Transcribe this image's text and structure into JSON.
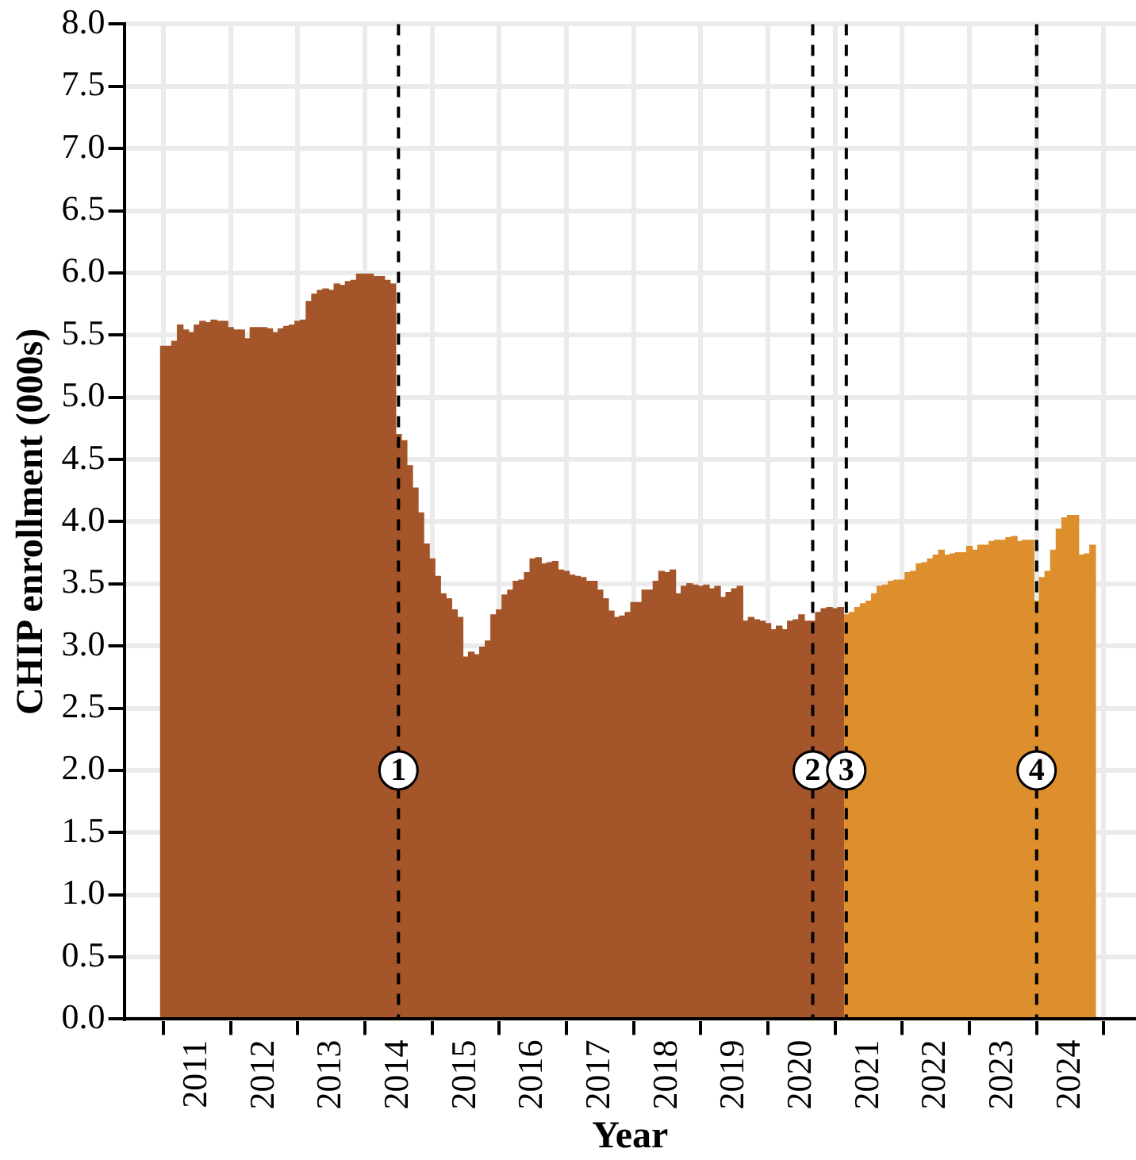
{
  "chart_data": {
    "type": "bar",
    "xlabel": "Year",
    "ylabel": "CHIP enrollment (000s)",
    "series": [
      {
        "color": "#a5552a",
        "x": [
          "2010-07",
          "2010-08",
          "2010-09",
          "2010-10",
          "2010-11",
          "2010-12",
          "2011-01",
          "2011-02",
          "2011-03",
          "2011-04",
          "2011-05",
          "2011-06",
          "2011-07",
          "2011-08",
          "2011-09",
          "2011-10",
          "2011-11",
          "2011-12",
          "2012-01",
          "2012-02",
          "2012-03",
          "2012-04",
          "2012-05",
          "2012-06",
          "2012-07",
          "2012-08",
          "2012-09",
          "2012-10",
          "2012-11",
          "2012-12",
          "2013-01",
          "2013-02",
          "2013-03",
          "2013-04",
          "2013-05",
          "2013-06",
          "2013-07",
          "2013-08",
          "2013-09",
          "2013-10",
          "2013-11",
          "2013-12",
          "2014-01",
          "2014-02",
          "2014-03",
          "2014-04",
          "2014-05",
          "2014-06",
          "2014-07",
          "2014-08",
          "2014-09",
          "2014-10",
          "2014-11",
          "2014-12",
          "2015-01",
          "2015-02",
          "2015-03",
          "2015-04",
          "2015-05",
          "2015-06",
          "2015-07",
          "2015-08",
          "2015-09",
          "2015-10",
          "2015-11",
          "2015-12",
          "2016-01",
          "2016-02",
          "2016-03",
          "2016-04",
          "2016-05",
          "2016-06",
          "2016-07",
          "2016-08",
          "2016-09",
          "2016-10",
          "2016-11",
          "2016-12",
          "2017-01",
          "2017-02",
          "2017-03",
          "2017-04",
          "2017-05",
          "2017-06",
          "2017-07",
          "2017-08",
          "2017-09",
          "2017-10",
          "2017-11",
          "2017-12",
          "2018-01",
          "2018-02",
          "2018-03",
          "2018-04",
          "2018-05",
          "2018-06",
          "2018-07",
          "2018-08",
          "2018-09",
          "2018-10",
          "2018-11",
          "2018-12",
          "2019-01",
          "2019-02",
          "2019-03",
          "2019-04",
          "2019-05",
          "2019-06",
          "2019-07",
          "2019-08",
          "2019-09",
          "2019-10",
          "2019-11",
          "2019-12",
          "2020-01",
          "2020-02",
          "2020-03",
          "2020-04",
          "2020-05",
          "2020-06",
          "2020-07",
          "2020-08"
        ],
        "values": [
          5.41,
          5.41,
          5.45,
          5.58,
          5.54,
          5.52,
          5.58,
          5.61,
          5.6,
          5.62,
          5.61,
          5.61,
          5.56,
          5.54,
          5.54,
          5.47,
          5.56,
          5.56,
          5.56,
          5.55,
          5.52,
          5.55,
          5.57,
          5.58,
          5.61,
          5.62,
          5.77,
          5.83,
          5.86,
          5.87,
          5.86,
          5.91,
          5.9,
          5.93,
          5.94,
          5.99,
          5.99,
          5.99,
          5.97,
          5.97,
          5.94,
          5.91,
          4.7,
          4.65,
          4.45,
          4.27,
          4.07,
          3.82,
          3.7,
          3.56,
          3.42,
          3.38,
          3.29,
          3.23,
          2.91,
          2.95,
          2.93,
          2.99,
          3.04,
          3.25,
          3.29,
          3.41,
          3.45,
          3.52,
          3.53,
          3.59,
          3.7,
          3.71,
          3.66,
          3.67,
          3.68,
          3.61,
          3.6,
          3.57,
          3.56,
          3.55,
          3.52,
          3.52,
          3.45,
          3.38,
          3.28,
          3.23,
          3.24,
          3.27,
          3.35,
          3.35,
          3.45,
          3.45,
          3.52,
          3.6,
          3.59,
          3.61,
          3.42,
          3.48,
          3.5,
          3.49,
          3.48,
          3.49,
          3.46,
          3.48,
          3.39,
          3.43,
          3.46,
          3.48,
          3.2,
          3.23,
          3.21,
          3.2,
          3.18,
          3.13,
          3.16,
          3.13,
          3.2,
          3.21,
          3.25,
          3.2,
          3.2,
          3.27,
          3.3,
          3.31,
          3.3,
          3.31
        ]
      },
      {
        "color": "#dc8f2c",
        "x": [
          "2020-09",
          "2020-10",
          "2020-11",
          "2020-12",
          "2021-01",
          "2021-02",
          "2021-03",
          "2021-04",
          "2021-05",
          "2021-06",
          "2021-07",
          "2021-08",
          "2021-09",
          "2021-10",
          "2021-11",
          "2021-12",
          "2022-01",
          "2022-02",
          "2022-03",
          "2022-04",
          "2022-05",
          "2022-06",
          "2022-07",
          "2022-08",
          "2022-09",
          "2022-10",
          "2022-11",
          "2022-12",
          "2023-01",
          "2023-02",
          "2023-03",
          "2023-04",
          "2023-05",
          "2023-06",
          "2023-07",
          "2023-08",
          "2023-09",
          "2023-10",
          "2023-11",
          "2023-12",
          "2024-01",
          "2024-02",
          "2024-03",
          "2024-04",
          "2024-05"
        ],
        "values": [
          3.25,
          3.27,
          3.31,
          3.34,
          3.36,
          3.42,
          3.48,
          3.49,
          3.52,
          3.53,
          3.53,
          3.59,
          3.6,
          3.66,
          3.67,
          3.7,
          3.73,
          3.77,
          3.73,
          3.74,
          3.75,
          3.75,
          3.8,
          3.77,
          3.81,
          3.81,
          3.84,
          3.85,
          3.85,
          3.87,
          3.88,
          3.84,
          3.85,
          3.85,
          3.36,
          3.55,
          3.6,
          3.77,
          3.94,
          4.03,
          4.05,
          4.05,
          3.73,
          3.74,
          3.81
        ]
      }
    ],
    "xlim": [
      "2010-06-15",
      "2024-06-10"
    ],
    "xticks": [
      "2011",
      "2012",
      "2013",
      "2014",
      "2015",
      "2016",
      "2017",
      "2018",
      "2019",
      "2020",
      "2021",
      "2022",
      "2023",
      "2024"
    ],
    "ylim": [
      0,
      8
    ],
    "yticks": [
      {
        "value": 0,
        "label": "0.0"
      },
      0.5,
      {
        "value": 1,
        "label": "1.0"
      },
      1.5,
      {
        "value": 2,
        "label": "2.0"
      },
      2.5,
      {
        "value": 3,
        "label": "3.0"
      },
      3.5,
      {
        "value": 4,
        "label": "4.0"
      },
      4.5,
      {
        "value": 5,
        "label": "5.0"
      },
      5.5,
      {
        "value": 6,
        "label": "6.0"
      },
      6.5,
      {
        "value": 7,
        "label": "7.0"
      },
      7.5,
      {
        "value": 8,
        "label": "8.0"
      }
    ],
    "grid": true,
    "ref_lines": [
      {
        "axis": "x",
        "value": "2014-01",
        "label": "1",
        "color": "#000000",
        "line_style": "dashed"
      },
      {
        "axis": "x",
        "value": "2020-03",
        "label": "2",
        "color": "#000000",
        "line_style": "dashed"
      },
      {
        "axis": "x",
        "value": "2020-09",
        "label": "3",
        "color": "#000000",
        "line_style": "dashed"
      },
      {
        "axis": "x",
        "value": "2023-07",
        "label": "4",
        "color": "#000000",
        "line_style": "dashed"
      }
    ]
  }
}
